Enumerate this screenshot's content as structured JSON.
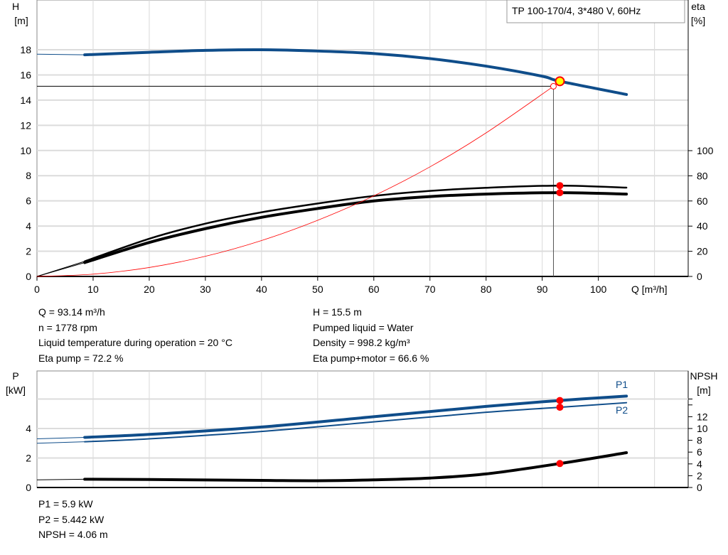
{
  "chart_data": [
    {
      "type": "line",
      "title": "TP 100-170/4, 3*480 V, 60Hz",
      "xlabel": "Q [m³/h]",
      "ylabel": "H [m]",
      "ylabel_unit": "[m]",
      "ylabel_name": "H",
      "y2label_name": "eta",
      "y2label_unit": "[%]",
      "xlim": [
        0,
        116
      ],
      "ylim": [
        0,
        20
      ],
      "y2lim": [
        0,
        113
      ],
      "xticks": [
        0,
        10,
        20,
        30,
        40,
        50,
        60,
        70,
        80,
        90,
        100
      ],
      "yticks": [
        0,
        2,
        4,
        6,
        8,
        10,
        12,
        14,
        16,
        18
      ],
      "y2ticks": [
        0,
        20,
        40,
        60,
        80,
        100
      ],
      "grid": true,
      "series": [
        {
          "axis": "H",
          "color": "#0f4d8a",
          "x": [
            8.5,
            20,
            30,
            40,
            50,
            60,
            70,
            80,
            90,
            93.14,
            105
          ],
          "y": [
            17.6,
            17.8,
            17.95,
            18.0,
            17.9,
            17.7,
            17.3,
            16.7,
            15.9,
            15.5,
            14.45
          ]
        },
        {
          "axis": "eta",
          "color": "#000000",
          "x": [
            8.5,
            20,
            30,
            40,
            50,
            60,
            70,
            80,
            93.14,
            105
          ],
          "y": [
            12,
            30,
            42,
            51,
            58,
            64,
            68,
            70.5,
            72.2,
            70.6
          ]
        },
        {
          "axis": "eta",
          "color": "#000000",
          "x": [
            8.5,
            20,
            30,
            40,
            50,
            60,
            70,
            80,
            93.14,
            105
          ],
          "y": [
            11,
            27,
            38,
            47,
            54,
            60,
            63.5,
            65.5,
            66.6,
            65.5
          ]
        },
        {
          "axis": "H",
          "color": "#ff0000",
          "x": [
            0,
            10,
            20,
            30,
            40,
            50,
            60,
            70,
            80,
            92
          ],
          "y": [
            0,
            0.18,
            0.71,
            1.6,
            2.85,
            4.46,
            6.4,
            8.7,
            11.4,
            15.1
          ]
        }
      ],
      "operating_point": {
        "Q": 93.14,
        "H": 15.5,
        "eta_pump": 72.2,
        "eta_pump_motor": 66.6
      },
      "duty_point": {
        "Q": 92,
        "H": 15.1
      }
    },
    {
      "type": "line",
      "ylabel_name": "P",
      "ylabel_unit": "[kW]",
      "y2label_name": "NPSH",
      "y2label_unit": "[m]",
      "xlim": [
        0,
        116
      ],
      "ylim": [
        0,
        7.9
      ],
      "y2lim": [
        0,
        19.8
      ],
      "yticks": [
        0,
        2,
        4
      ],
      "y2ticks": [
        0,
        2,
        4,
        6,
        8,
        10,
        12
      ],
      "grid": true,
      "series": [
        {
          "name": "P1",
          "color": "#0f4d8a",
          "x": [
            8.5,
            20,
            40,
            60,
            80,
            93.14,
            105
          ],
          "y": [
            3.4,
            3.6,
            4.1,
            4.8,
            5.5,
            5.9,
            6.2
          ]
        },
        {
          "name": "P2",
          "color": "#0f4d8a",
          "x": [
            8.5,
            20,
            40,
            60,
            80,
            93.14,
            105
          ],
          "y": [
            3.1,
            3.3,
            3.8,
            4.45,
            5.1,
            5.442,
            5.75
          ]
        },
        {
          "axis": "NPSH",
          "color": "#000000",
          "x": [
            8.5,
            20,
            40,
            50,
            60,
            70,
            80,
            93.14,
            105
          ],
          "y": [
            1.4,
            1.35,
            1.2,
            1.15,
            1.3,
            1.6,
            2.3,
            4.06,
            5.9
          ]
        }
      ]
    }
  ],
  "info": {
    "left": [
      "Q = 93.14 m³/h",
      "n = 1778 rpm",
      "Liquid temperature during operation = 20 °C",
      "Eta pump = 72.2 %"
    ],
    "right": [
      "H = 15.5 m",
      "Pumped liquid = Water",
      "Density = 998.2 kg/m³",
      "Eta pump+motor = 66.6 %"
    ],
    "bottom": [
      "P1 = 5.9 kW",
      "P2 = 5.442 kW",
      "NPSH = 4.06 m"
    ]
  }
}
